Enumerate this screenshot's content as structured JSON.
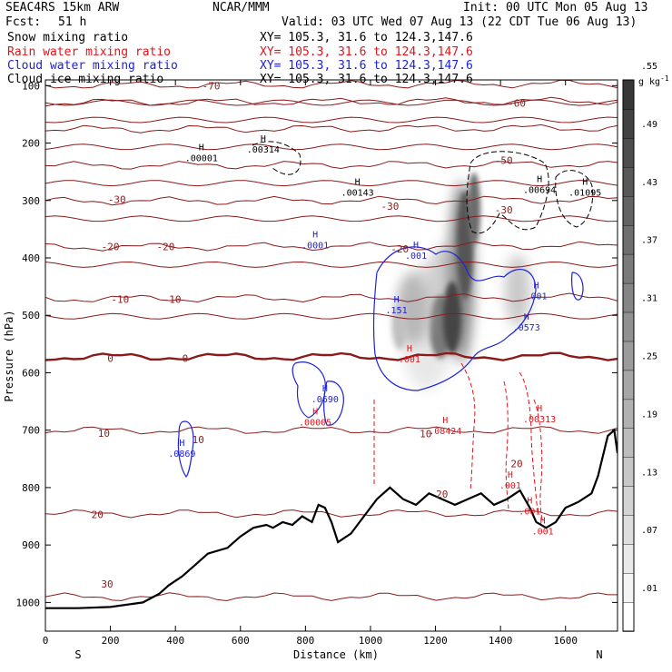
{
  "header": {
    "model": "SEAC4RS 15km ARW",
    "org": "NCAR/MMM",
    "init": "Init: 00 UTC Mon 05 Aug 13",
    "fcst_label": "Fcst:",
    "fcst_value": "51 h",
    "valid": "Valid: 03 UTC Wed 07 Aug 13 (22 CDT Tue 06 Aug 13)",
    "fields": [
      {
        "name": "Snow mixing ratio",
        "xy": "XY= 105.3, 31.6 to 124.3,147.6",
        "color": "#000000"
      },
      {
        "name": "Rain water mixing ratio",
        "xy": "XY= 105.3, 31.6 to 124.3,147.6",
        "color": "#e0141c"
      },
      {
        "name": "Cloud water mixing ratio",
        "xy": "XY= 105.3, 31.6 to 124.3,147.6",
        "color": "#1f22d6"
      },
      {
        "name": "Cloud ice mixing ratio",
        "xy": "XY= 105.3, 31.6 to 124.3,147.6",
        "color": "#000000"
      }
    ]
  },
  "chart_data": {
    "type": "contour",
    "xlabel": "Distance (km)",
    "ylabel": "Pressure (hPa)",
    "xlim": [
      0,
      1760
    ],
    "ylim": [
      1050,
      90
    ],
    "x_ticks": [
      0,
      200,
      400,
      600,
      800,
      1000,
      1200,
      1400,
      1600
    ],
    "y_ticks": [
      100,
      200,
      300,
      400,
      500,
      600,
      700,
      800,
      900,
      1000
    ],
    "x_end_labels": {
      "left": "S",
      "right": "N"
    },
    "colorbar": {
      "unit": "g kg",
      "unit_exp": "-1",
      "labels": [
        ".01",
        ".07",
        ".13",
        ".19",
        ".25",
        ".31",
        ".37",
        ".43",
        ".49",
        ".55"
      ]
    },
    "temperature_contours": {
      "color": "#8b1a1a",
      "levels": [
        -70,
        -60,
        -50,
        -40,
        -30,
        -20,
        -10,
        0,
        10,
        20,
        30
      ],
      "labels": [
        {
          "text": "-70",
          "x": 510,
          "p": 100
        },
        {
          "text": "-60",
          "x": 1450,
          "p": 130
        },
        {
          "text": "-50",
          "x": 1410,
          "p": 230
        },
        {
          "text": "-30",
          "x": 220,
          "p": 298
        },
        {
          "text": "-30",
          "x": 1060,
          "p": 310
        },
        {
          "text": "-30",
          "x": 1410,
          "p": 316
        },
        {
          "text": "-20",
          "x": 200,
          "p": 380
        },
        {
          "text": "-20",
          "x": 370,
          "p": 380
        },
        {
          "text": "-20",
          "x": 1090,
          "p": 384
        },
        {
          "text": "-10",
          "x": 230,
          "p": 472
        },
        {
          "text": "-10",
          "x": 390,
          "p": 472
        },
        {
          "text": "0",
          "x": 200,
          "p": 575
        },
        {
          "text": "0",
          "x": 430,
          "p": 575
        },
        {
          "text": "10",
          "x": 180,
          "p": 705
        },
        {
          "text": "10",
          "x": 470,
          "p": 716
        },
        {
          "text": "10",
          "x": 1170,
          "p": 706
        },
        {
          "text": "20",
          "x": 160,
          "p": 847
        },
        {
          "text": "20",
          "x": 1220,
          "p": 811
        },
        {
          "text": "20",
          "x": 1450,
          "p": 758
        },
        {
          "text": "30",
          "x": 190,
          "p": 968
        }
      ]
    },
    "maxima": [
      {
        "text": ".00001",
        "x": 480,
        "p": 230,
        "color": "#000000"
      },
      {
        "text": ".00314",
        "x": 670,
        "p": 215,
        "color": "#000000"
      },
      {
        "text": ".00143",
        "x": 960,
        "p": 290,
        "color": "#000000"
      },
      {
        "text": ".00694",
        "x": 1520,
        "p": 285,
        "color": "#000000"
      },
      {
        "text": ".01095",
        "x": 1660,
        "p": 290,
        "color": "#000000"
      },
      {
        "text": ".0001",
        "x": 830,
        "p": 382,
        "color": "#1f22d6"
      },
      {
        "text": ".001",
        "x": 1140,
        "p": 400,
        "color": "#1f22d6"
      },
      {
        "text": ".151",
        "x": 1080,
        "p": 495,
        "color": "#1f22d6"
      },
      {
        "text": ".0573",
        "x": 1480,
        "p": 525,
        "color": "#1f22d6"
      },
      {
        "text": ".001",
        "x": 1510,
        "p": 470,
        "color": "#1f22d6"
      },
      {
        "text": ".0690",
        "x": 860,
        "p": 650,
        "color": "#1f22d6"
      },
      {
        "text": ".00005",
        "x": 830,
        "p": 690,
        "color": "#e0141c"
      },
      {
        "text": ".08424",
        "x": 1230,
        "p": 705,
        "color": "#e0141c"
      },
      {
        "text": ".00313",
        "x": 1520,
        "p": 685,
        "color": "#e0141c"
      },
      {
        "text": ".0869",
        "x": 420,
        "p": 745,
        "color": "#1f22d6"
      },
      {
        "text": ".001",
        "x": 1430,
        "p": 800,
        "color": "#e0141c"
      },
      {
        "text": ".001",
        "x": 1490,
        "p": 845,
        "color": "#e0141c"
      },
      {
        "text": ".001",
        "x": 1530,
        "p": 880,
        "color": "#e0141c"
      },
      {
        "text": ".001",
        "x": 1120,
        "p": 580,
        "color": "#e0141c"
      }
    ],
    "terrain_surface_pressure": {
      "x": [
        0,
        100,
        200,
        300,
        350,
        380,
        420,
        460,
        500,
        560,
        600,
        640,
        680,
        700,
        730,
        760,
        790,
        820,
        840,
        860,
        880,
        900,
        940,
        980,
        1020,
        1060,
        1100,
        1140,
        1180,
        1220,
        1260,
        1300,
        1340,
        1380,
        1420,
        1460,
        1490,
        1510,
        1540,
        1570,
        1600,
        1640,
        1680,
        1700,
        1730,
        1750,
        1760
      ],
      "p": [
        1010,
        1010,
        1008,
        1000,
        985,
        970,
        955,
        935,
        915,
        905,
        885,
        870,
        865,
        870,
        860,
        865,
        850,
        860,
        830,
        835,
        860,
        895,
        880,
        850,
        820,
        800,
        820,
        830,
        810,
        820,
        830,
        820,
        810,
        830,
        820,
        805,
        835,
        860,
        870,
        860,
        835,
        825,
        810,
        780,
        710,
        700,
        740
      ]
    }
  }
}
